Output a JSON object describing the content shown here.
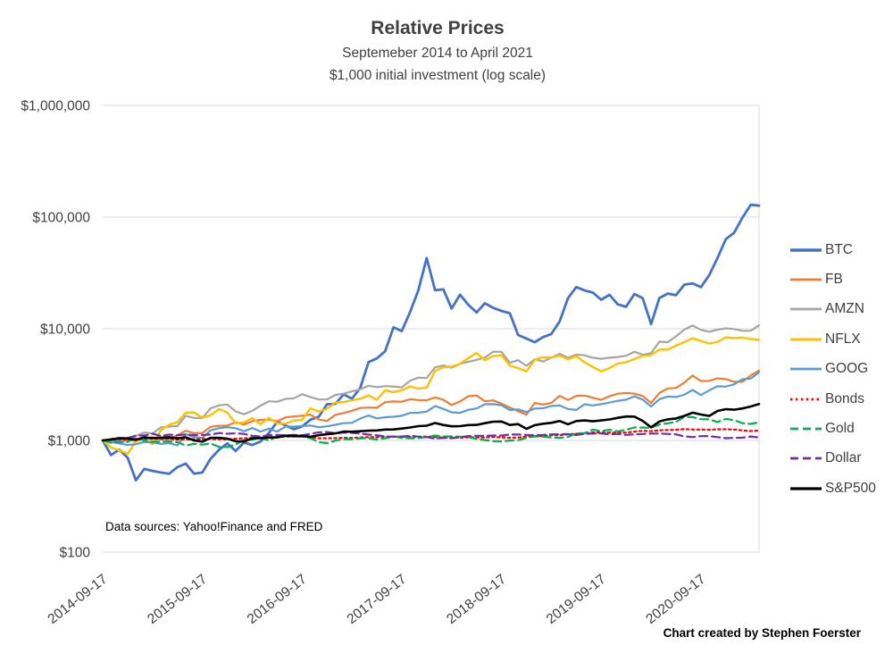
{
  "title": "Relative Prices",
  "subtitle1": "Septemeber 2014 to April 2021",
  "subtitle2": "$1,000 initial investment (log scale)",
  "notes": {
    "data_sources": "Data sources: Yahoo!Finance and FRED",
    "credit": "Chart created by Stephen Foerster"
  },
  "chart_data": {
    "type": "line",
    "title": "Relative Prices",
    "subtitle": "Septemeber 2014 to April 2021",
    "subtitle2": "$1,000 initial investment (log scale)",
    "y_scale": "log",
    "ylim": [
      100,
      1000000
    ],
    "grid": "horizontal",
    "grid_color": "#d9d9d9",
    "text_color": "#404040",
    "legend_position": "right",
    "x_unit": "months from 2014-09-17, monthly samples to 2021-04",
    "y_ticks": [
      {
        "label": "$100",
        "value": 100
      },
      {
        "label": "$1,000",
        "value": 1000
      },
      {
        "label": "$10,000",
        "value": 10000
      },
      {
        "label": "$100,000",
        "value": 100000
      },
      {
        "label": "$1,000,000",
        "value": 1000000
      }
    ],
    "x_ticks": [
      {
        "label": "2014-09-17",
        "month": 0
      },
      {
        "label": "2015-09-17",
        "month": 12
      },
      {
        "label": "2016-09-17",
        "month": 24
      },
      {
        "label": "2017-09-17",
        "month": 36
      },
      {
        "label": "2018-09-17",
        "month": 48
      },
      {
        "label": "2019-09-17",
        "month": 60
      },
      {
        "label": "2020-09-17",
        "month": 72
      }
    ],
    "series": [
      {
        "name": "BTC",
        "color": "#4472c4",
        "dash": "solid",
        "width": 2.8,
        "values": [
          1000,
          740,
          827,
          700,
          440,
          556,
          534,
          516,
          503,
          576,
          621,
          503,
          516,
          687,
          825,
          941,
          805,
          956,
          910,
          980,
          1162,
          1473,
          1365,
          1258,
          1335,
          1532,
          1630,
          2107,
          2123,
          2582,
          2363,
          2954,
          5033,
          5426,
          6291,
          10291,
          9540,
          14114,
          22101,
          43000,
          22101,
          22538,
          15164,
          20219,
          16411,
          14004,
          16915,
          15383,
          14442,
          13786,
          8797,
          8184,
          7571,
          8424,
          8971,
          11641,
          18731,
          23632,
          22057,
          21072,
          18184,
          20131,
          16520,
          15733,
          20459,
          18818,
          11000,
          18862,
          20678,
          20000,
          24836,
          25492,
          23589,
          30197,
          43107,
          63457,
          72429,
          98906,
          128884,
          126477
        ]
      },
      {
        "name": "FB",
        "color": "#ed7d31",
        "dash": "solid",
        "width": 2.2,
        "values": [
          1000,
          974,
          1009,
          1013,
          986,
          1025,
          1068,
          1023,
          1029,
          1114,
          1221,
          1161,
          1168,
          1325,
          1351,
          1360,
          1457,
          1388,
          1482,
          1527,
          1543,
          1484,
          1609,
          1638,
          1666,
          1701,
          1538,
          1494,
          1692,
          1760,
          1845,
          1951,
          1968,
          1961,
          2198,
          2233,
          2219,
          2338,
          2301,
          2292,
          2427,
          2316,
          2075,
          2234,
          2491,
          2524,
          2241,
          2282,
          2136,
          1971,
          1826,
          1703,
          2165,
          2097,
          2165,
          2512,
          2305,
          2506,
          2522,
          2411,
          2313,
          2489,
          2619,
          2666,
          2622,
          2500,
          2166,
          2659,
          2923,
          2949,
          3294,
          3808,
          3401,
          3417,
          3597,
          3548,
          3355,
          3346,
          3825,
          4222
        ]
      },
      {
        "name": "AMZN",
        "color": "#a5a5a5",
        "dash": "solid",
        "width": 2.2,
        "values": [
          1000,
          947,
          1050,
          963,
          1100,
          1179,
          1154,
          1308,
          1331,
          1346,
          1663,
          1591,
          1588,
          1941,
          2062,
          2096,
          1821,
          1714,
          1841,
          2046,
          2242,
          2219,
          2353,
          2385,
          2597,
          2449,
          2328,
          2326,
          2554,
          2621,
          2750,
          2869,
          3085,
          3002,
          3063,
          3041,
          2981,
          3428,
          3650,
          3627,
          4500,
          4691,
          4489,
          4857,
          5054,
          5272,
          5513,
          6242,
          6212,
          4956,
          5242,
          4658,
          5331,
          5086,
          5523,
          5975,
          5505,
          5873,
          5790,
          5509,
          5384,
          5510,
          5585,
          5731,
          6230,
          5842,
          6047,
          7673,
          7575,
          8556,
          9815,
          10703,
          9766,
          9416,
          9825,
          10101,
          9944,
          9592,
          9596,
          10754
        ]
      },
      {
        "name": "NFLX",
        "color": "#ffc000",
        "dash": "solid",
        "width": 2.4,
        "values": [
          1000,
          865,
          817,
          757,
          978,
          1053,
          922,
          1233,
          1384,
          1454,
          1772,
          1783,
          1601,
          1680,
          1912,
          1773,
          1424,
          1448,
          1585,
          1396,
          1590,
          1418,
          1415,
          1511,
          1528,
          1936,
          1814,
          1919,
          2182,
          2204,
          2292,
          2360,
          2528,
          2316,
          2817,
          2709,
          2812,
          3046,
          2908,
          2976,
          4191,
          4517,
          4579,
          4845,
          5451,
          6069,
          5232,
          5701,
          5801,
          4679,
          4436,
          4150,
          5264,
          5552,
          5528,
          5745,
          5322,
          5695,
          5008,
          4554,
          4149,
          4456,
          4879,
          5017,
          5350,
          5722,
          5822,
          6510,
          6508,
          7055,
          7580,
          8210,
          7752,
          7376,
          7608,
          8383,
          8254,
          8354,
          8088,
          7961
        ]
      },
      {
        "name": "GOOG",
        "color": "#5b9bd5",
        "dash": "solid",
        "width": 2.2,
        "values": [
          1000,
          969,
          939,
          912,
          926,
          968,
          961,
          931,
          945,
          902,
          1140,
          1071,
          1054,
          1232,
          1287,
          1315,
          1288,
          1209,
          1291,
          1201,
          1275,
          1199,
          1332,
          1329,
          1347,
          1360,
          1314,
          1338,
          1381,
          1427,
          1438,
          1570,
          1672,
          1575,
          1613,
          1628,
          1662,
          1762,
          1770,
          1814,
          2028,
          1915,
          1788,
          1763,
          1880,
          1934,
          2110,
          2111,
          2068,
          1866,
          1897,
          1795,
          1935,
          1941,
          2033,
          2060,
          1913,
          1873,
          2109,
          2059,
          2113,
          2184,
          2262,
          2317,
          2486,
          2321,
          2015,
          2337,
          2476,
          2450,
          2570,
          2832,
          2547,
          2809,
          3051,
          3036,
          3181,
          3530,
          3585,
          4079
        ]
      },
      {
        "name": "Bonds",
        "color": "#ff0000",
        "dash": "dotted",
        "width": 2.2,
        "values": [
          1000,
          1010,
          1017,
          1019,
          1040,
          1030,
          1035,
          1031,
          1028,
          1017,
          1024,
          1022,
          1029,
          1029,
          1026,
          1023,
          1037,
          1044,
          1054,
          1056,
          1056,
          1075,
          1081,
          1080,
          1079,
          1071,
          1045,
          1047,
          1049,
          1056,
          1055,
          1063,
          1071,
          1070,
          1074,
          1084,
          1079,
          1080,
          1078,
          1083,
          1071,
          1060,
          1067,
          1059,
          1066,
          1065,
          1065,
          1072,
          1065,
          1057,
          1063,
          1083,
          1094,
          1093,
          1114,
          1114,
          1134,
          1148,
          1150,
          1180,
          1174,
          1177,
          1176,
          1175,
          1198,
          1219,
          1212,
          1233,
          1238,
          1245,
          1263,
          1253,
          1252,
          1246,
          1258,
          1260,
          1251,
          1230,
          1215,
          1224
        ]
      },
      {
        "name": "Gold",
        "color": "#00b050",
        "dash": "dashed",
        "width": 2.2,
        "values": [
          1000,
          963,
          966,
          974,
          1055,
          998,
          973,
          974,
          979,
          964,
          901,
          933,
          917,
          939,
          876,
          873,
          919,
          1015,
          1014,
          1063,
          998,
          1086,
          1111,
          1076,
          1082,
          1047,
          965,
          947,
          996,
          1027,
          1027,
          1043,
          1044,
          1021,
          1044,
          1086,
          1053,
          1045,
          1049,
          1072,
          1106,
          1084,
          1090,
          1081,
          1070,
          1030,
          1007,
          988,
          980,
          999,
          1005,
          1054,
          1086,
          1080,
          1063,
          1055,
          1074,
          1159,
          1163,
          1250,
          1211,
          1244,
          1204,
          1248,
          1307,
          1304,
          1297,
          1387,
          1423,
          1465,
          1625,
          1618,
          1551,
          1545,
          1461,
          1558,
          1520,
          1426,
          1405,
          1454
        ]
      },
      {
        "name": "Dollar",
        "color": "#7030a0",
        "dash": "dashed",
        "width": 2.2,
        "values": [
          1000,
          1012,
          1028,
          1051,
          1104,
          1109,
          1145,
          1101,
          1128,
          1112,
          1132,
          1115,
          1122,
          1128,
          1166,
          1149,
          1159,
          1143,
          1101,
          1084,
          1116,
          1119,
          1112,
          1118,
          1112,
          1144,
          1182,
          1190,
          1158,
          1177,
          1169,
          1152,
          1128,
          1113,
          1087,
          1079,
          1084,
          1101,
          1083,
          1072,
          1037,
          1055,
          1048,
          1069,
          1094,
          1100,
          1101,
          1107,
          1107,
          1130,
          1132,
          1120,
          1113,
          1120,
          1133,
          1135,
          1139,
          1119,
          1147,
          1151,
          1157,
          1133,
          1144,
          1122,
          1134,
          1142,
          1152,
          1152,
          1144,
          1134,
          1086,
          1072,
          1093,
          1094,
          1070,
          1047,
          1055,
          1058,
          1085,
          1063
        ]
      },
      {
        "name": "S&P500",
        "color": "#000000",
        "dash": "solid",
        "width": 2.6,
        "values": [
          1000,
          1023,
          1049,
          1044,
          1012,
          1067,
          1049,
          1058,
          1068,
          1046,
          1067,
          1000,
          974,
          1054,
          1055,
          1037,
          984,
          980,
          1045,
          1047,
          1063,
          1064,
          1102,
          1101,
          1099,
          1078,
          1115,
          1135,
          1156,
          1199,
          1198,
          1209,
          1223,
          1229,
          1253,
          1254,
          1277,
          1306,
          1343,
          1356,
          1432,
          1376,
          1339,
          1343,
          1372,
          1378,
          1428,
          1472,
          1478,
          1375,
          1400,
          1271,
          1371,
          1412,
          1437,
          1494,
          1396,
          1492,
          1511,
          1484,
          1510,
          1541,
          1593,
          1638,
          1636,
          1498,
          1311,
          1477,
          1544,
          1572,
          1659,
          1775,
          1705,
          1658,
          1837,
          1905,
          1883,
          1933,
          2015,
          2120
        ]
      }
    ]
  }
}
